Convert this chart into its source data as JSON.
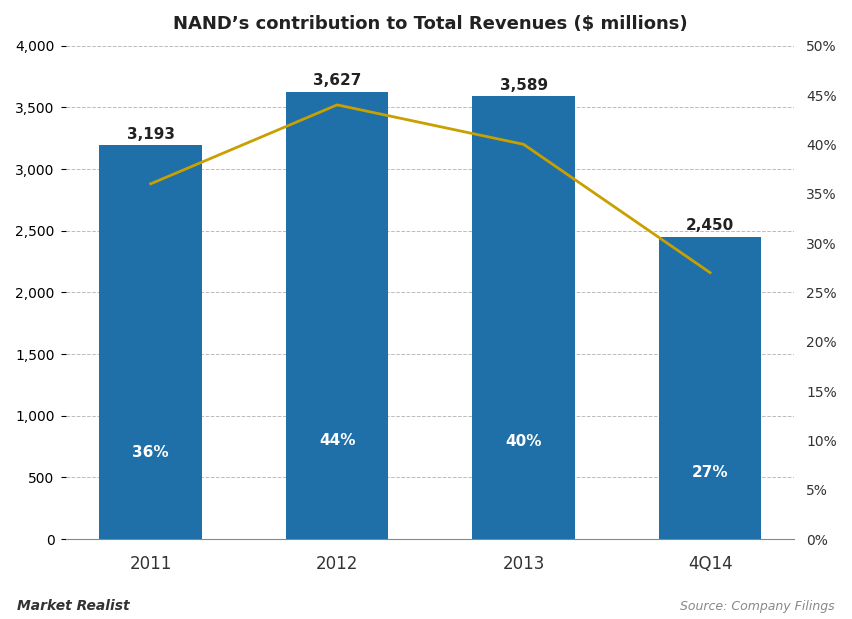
{
  "title": "NAND’s contribution to Total Revenues ($ millions)",
  "categories": [
    "2011",
    "2012",
    "2013",
    "4Q14"
  ],
  "bar_values": [
    3193,
    3627,
    3589,
    2450
  ],
  "bar_labels": [
    "3,193",
    "3,627",
    "3,589",
    "2,450"
  ],
  "pct_values": [
    36,
    44,
    40,
    27
  ],
  "pct_labels": [
    "36%",
    "44%",
    "40%",
    "27%"
  ],
  "bar_color": "#1f6fa8",
  "line_color": "#c8a000",
  "left_ylim": [
    0,
    4000
  ],
  "left_yticks": [
    0,
    500,
    1000,
    1500,
    2000,
    2500,
    3000,
    3500,
    4000
  ],
  "right_ylim": [
    0,
    50
  ],
  "right_yticks": [
    0,
    5,
    10,
    15,
    20,
    25,
    30,
    35,
    40,
    45,
    50
  ],
  "right_yticklabels": [
    "0%",
    "5%",
    "10%",
    "15%",
    "20%",
    "25%",
    "30%",
    "35%",
    "40%",
    "45%",
    "50%"
  ],
  "background_color": "#ffffff",
  "grid_color": "#aaaaaa",
  "title_fontsize": 13,
  "watermark_left": "Market Realist",
  "watermark_right": "Source: Company Filings"
}
